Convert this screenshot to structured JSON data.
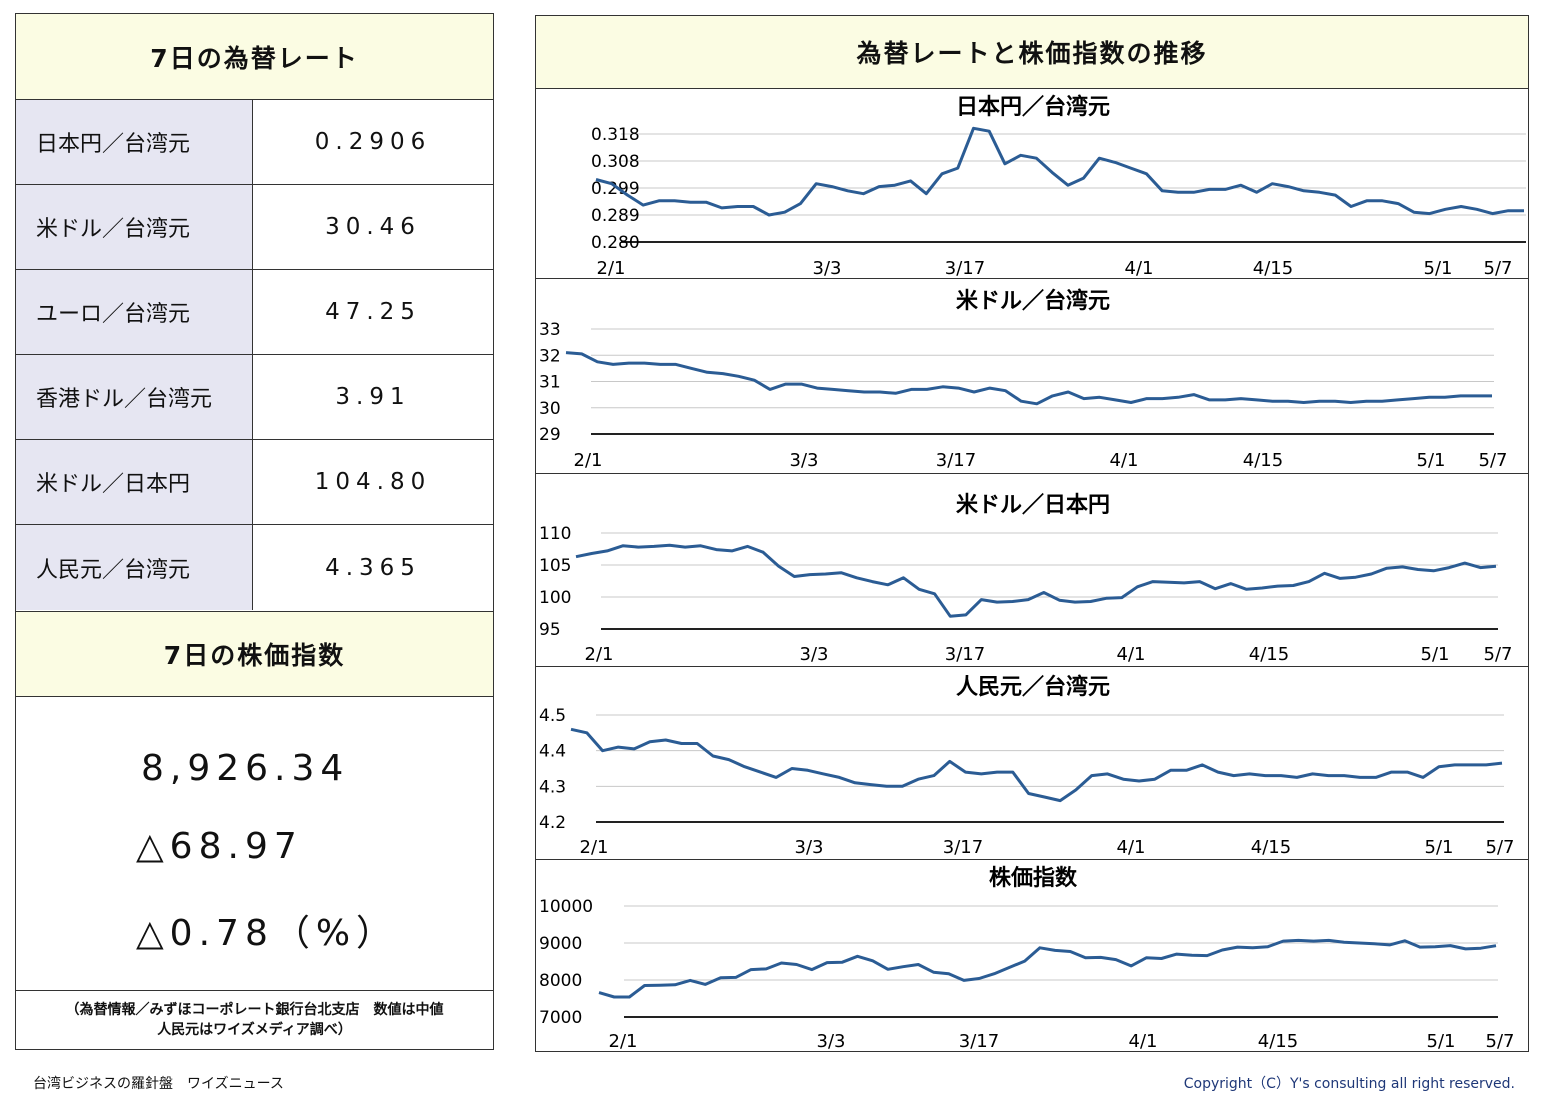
{
  "rates_panel": {
    "header": "7日の為替レート",
    "rows": [
      {
        "label": "日本円／台湾元",
        "value": "0.2906"
      },
      {
        "label": "米ドル／台湾元",
        "value": "30.46"
      },
      {
        "label": "ユーロ／台湾元",
        "value": "47.25"
      },
      {
        "label": "香港ドル／台湾元",
        "value": "3.91"
      },
      {
        "label": "米ドル／日本円",
        "value": "104.80"
      },
      {
        "label": "人民元／台湾元",
        "value": "4.365"
      }
    ]
  },
  "stock_panel": {
    "header": "7日の株価指数",
    "value": "8,926.34",
    "change": "△68.97",
    "change_pct": "△0.78（%）",
    "source_line1": "（為替情報／みずほコーポレート銀行台北支店　数値は中値",
    "source_line2": "人民元はワイズメディア調べ）"
  },
  "charts_panel": {
    "header": "為替レートと株価指数の推移"
  },
  "footer": {
    "left": "台湾ビジネスの羅針盤　ワイズニュース",
    "right": "Copyright（C）Y's consulting all right reserved."
  },
  "colors": {
    "line": "#2b5c94",
    "header_bg": "#fbfce3",
    "label_bg": "#e6e6f2"
  },
  "chart_data": [
    {
      "type": "line",
      "title": "日本円／台湾元",
      "x_ticks": [
        "2/1",
        "3/3",
        "3/17",
        "4/1",
        "4/15",
        "5/1",
        "5/7"
      ],
      "y_ticks": [
        "0.318",
        "0.308",
        "0.299",
        "0.289",
        "0.280"
      ],
      "ylim": [
        0.28,
        0.318
      ],
      "values": [
        0.302,
        0.3005,
        0.2965,
        0.293,
        0.2945,
        0.2945,
        0.294,
        0.294,
        0.292,
        0.2925,
        0.2925,
        0.2895,
        0.2905,
        0.2935,
        0.3005,
        0.2995,
        0.298,
        0.297,
        0.2995,
        0.3,
        0.3015,
        0.297,
        0.304,
        0.306,
        0.32,
        0.319,
        0.3075,
        0.3105,
        0.3095,
        0.3045,
        0.3,
        0.3025,
        0.3095,
        0.308,
        0.306,
        0.304,
        0.298,
        0.2975,
        0.2975,
        0.2985,
        0.2985,
        0.3,
        0.2975,
        0.3005,
        0.2995,
        0.298,
        0.2975,
        0.2965,
        0.2925,
        0.2945,
        0.2945,
        0.2935,
        0.2905,
        0.29,
        0.2915,
        0.2925,
        0.2915,
        0.29,
        0.291,
        0.291
      ],
      "grid": true
    },
    {
      "type": "line",
      "title": "米ドル／台湾元",
      "x_ticks": [
        "2/1",
        "3/3",
        "3/17",
        "4/1",
        "4/15",
        "5/1",
        "5/7"
      ],
      "y_ticks": [
        "33",
        "32",
        "31",
        "30",
        "29"
      ],
      "ylim": [
        29,
        33
      ],
      "values": [
        32.1,
        32.05,
        31.75,
        31.65,
        31.7,
        31.7,
        31.65,
        31.65,
        31.5,
        31.35,
        31.3,
        31.2,
        31.05,
        30.7,
        30.9,
        30.9,
        30.75,
        30.7,
        30.65,
        30.6,
        30.6,
        30.55,
        30.7,
        30.7,
        30.8,
        30.75,
        30.6,
        30.75,
        30.65,
        30.25,
        30.15,
        30.45,
        30.6,
        30.35,
        30.4,
        30.3,
        30.2,
        30.35,
        30.35,
        30.4,
        30.5,
        30.3,
        30.3,
        30.35,
        30.3,
        30.25,
        30.25,
        30.2,
        30.25,
        30.25,
        30.2,
        30.25,
        30.25,
        30.3,
        30.35,
        30.4,
        30.4,
        30.45,
        30.45,
        30.45
      ],
      "grid": true
    },
    {
      "type": "line",
      "title": "米ドル／日本円",
      "x_ticks": [
        "2/1",
        "3/3",
        "3/17",
        "4/1",
        "4/15",
        "5/1",
        "5/7"
      ],
      "y_ticks": [
        "110",
        "105",
        "100",
        "95"
      ],
      "ylim": [
        95,
        110
      ],
      "values": [
        106.3,
        106.8,
        107.2,
        108,
        107.8,
        107.9,
        108.1,
        107.8,
        108,
        107.4,
        107.2,
        107.9,
        107,
        104.8,
        103.2,
        103.5,
        103.6,
        103.8,
        103,
        102.4,
        101.9,
        103,
        101.2,
        100.5,
        97,
        97.2,
        99.6,
        99.2,
        99.3,
        99.6,
        100.7,
        99.5,
        99.2,
        99.3,
        99.8,
        99.9,
        101.6,
        102.4,
        102.3,
        102.2,
        102.4,
        101.3,
        102.1,
        101.2,
        101.4,
        101.7,
        101.8,
        102.4,
        103.7,
        102.9,
        103.1,
        103.6,
        104.5,
        104.7,
        104.3,
        104.1,
        104.6,
        105.3,
        104.6,
        104.8
      ],
      "grid": true
    },
    {
      "type": "line",
      "title": "人民元／台湾元",
      "x_ticks": [
        "2/1",
        "3/3",
        "3/17",
        "4/1",
        "4/15",
        "5/1",
        "5/7"
      ],
      "y_ticks": [
        "4.5",
        "4.4",
        "4.3",
        "4.2"
      ],
      "ylim": [
        4.2,
        4.5
      ],
      "values": [
        4.46,
        4.45,
        4.4,
        4.41,
        4.405,
        4.425,
        4.43,
        4.42,
        4.42,
        4.385,
        4.375,
        4.355,
        4.34,
        4.325,
        4.35,
        4.345,
        4.335,
        4.325,
        4.31,
        4.305,
        4.3,
        4.3,
        4.32,
        4.33,
        4.37,
        4.34,
        4.335,
        4.34,
        4.34,
        4.28,
        4.27,
        4.26,
        4.29,
        4.33,
        4.335,
        4.32,
        4.315,
        4.32,
        4.345,
        4.345,
        4.36,
        4.34,
        4.33,
        4.335,
        4.33,
        4.33,
        4.325,
        4.335,
        4.33,
        4.33,
        4.325,
        4.325,
        4.34,
        4.34,
        4.325,
        4.355,
        4.36,
        4.36,
        4.36,
        4.365
      ],
      "grid": true
    },
    {
      "type": "line",
      "title": "株価指数",
      "x_ticks": [
        "2/1",
        "3/3",
        "3/17",
        "4/1",
        "4/15",
        "5/1",
        "5/7"
      ],
      "y_ticks": [
        "10000",
        "9000",
        "8000",
        "7000"
      ],
      "ylim": [
        7000,
        10000
      ],
      "values": [
        7660,
        7540,
        7540,
        7850,
        7860,
        7870,
        7990,
        7880,
        8060,
        8070,
        8280,
        8300,
        8460,
        8420,
        8280,
        8470,
        8480,
        8640,
        8520,
        8290,
        8360,
        8420,
        8210,
        8170,
        7990,
        8040,
        8170,
        8340,
        8510,
        8870,
        8800,
        8770,
        8600,
        8610,
        8550,
        8380,
        8600,
        8580,
        8700,
        8670,
        8660,
        8810,
        8890,
        8870,
        8900,
        9050,
        9070,
        9050,
        9070,
        9020,
        9000,
        8980,
        8950,
        9060,
        8890,
        8900,
        8930,
        8840,
        8860,
        8926
      ]
    }
  ]
}
